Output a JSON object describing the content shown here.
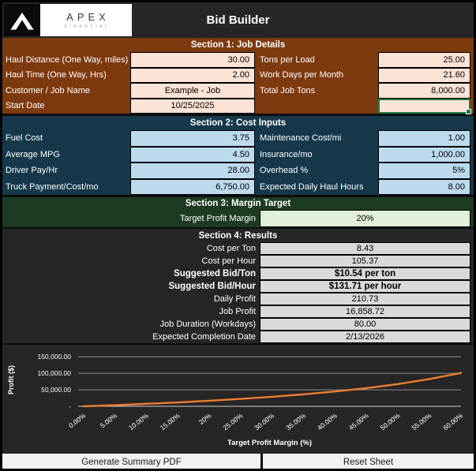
{
  "header": {
    "title": "Bid Builder",
    "logo": {
      "brand": "APEX",
      "sub": "FINANCIAL",
      "chevron_icon": "mountain-chevron"
    }
  },
  "sections": {
    "job_details": {
      "title": "Section 1: Job Details",
      "rows": [
        {
          "label": "Haul Distance (One Way, miles)",
          "value": "30.00",
          "label2": "Tons per Load",
          "value2": "25.00"
        },
        {
          "label": "Haul Time (One Way, Hrs)",
          "value": "2.00",
          "label2": "Work Days per Month",
          "value2": "21.60"
        },
        {
          "label": "Customer / Job Name",
          "value": "Example - Job",
          "label2": "Total Job Tons",
          "value2": "8,000.00"
        },
        {
          "label": "Start Date",
          "value": "10/25/2025",
          "label2": "",
          "value2": ""
        }
      ]
    },
    "cost_inputs": {
      "title": "Section 2: Cost Inputs",
      "rows": [
        {
          "label": "Fuel Cost",
          "value": "3.75",
          "label2": "Maintenance Cost/mi",
          "value2": "1.00"
        },
        {
          "label": "Average MPG",
          "value": "4.50",
          "label2": "Insurance/mo",
          "value2": "1,000.00"
        },
        {
          "label": "Driver Pay/Hr",
          "value": "28.00",
          "label2": "Overhead %",
          "value2": "5%"
        },
        {
          "label": "Truck Payment/Cost/mo",
          "value": "6,750.00",
          "label2": "Expected Daily Haul Hours",
          "value2": "8.00"
        }
      ]
    },
    "margin_target": {
      "title": "Section 3: Margin Target",
      "label": "Target Profit Margin",
      "value": "20%"
    },
    "results": {
      "title": "Section 4: Results",
      "rows": [
        {
          "label": "Cost per Ton",
          "value": "8.43"
        },
        {
          "label": "Cost per Hour",
          "value": "105.37"
        },
        {
          "label": "Suggested Bid/Ton",
          "value": "$10.54 per ton"
        },
        {
          "label": "Suggested Bid/Hour",
          "value": "$131.71 per hour"
        },
        {
          "label": "Daily Profit",
          "value": "210.73"
        },
        {
          "label": "Job Profit",
          "value": "16,858.72"
        },
        {
          "label": "Job Duration (Workdays)",
          "value": "80.00"
        },
        {
          "label": "Expected Completion Date",
          "value": "2/13/2026"
        }
      ]
    }
  },
  "buttons": {
    "generate_pdf": "Generate Summary PDF",
    "reset": "Reset Sheet"
  },
  "colors": {
    "section1_brown": "#7E3A0F",
    "section1_cell": "#FBE3D6",
    "section2_teal": "#16384A",
    "section2_cell": "#BDD9EE",
    "section3_green": "#1D3B22",
    "section3_cell": "#E2EFDA",
    "section4_black": "#262626",
    "section4_cell": "#D9D9D9",
    "selection_green": "#1F7A46",
    "chart_line_orange": "#ED7D31"
  },
  "chart_data": {
    "type": "line",
    "title": "",
    "xlabel": "Target Profit Margin (%)",
    "ylabel": "Profit ($)",
    "x_labels": [
      "0.00%",
      "5.00%",
      "10.00%",
      "15.00%",
      "20%",
      "25.00%",
      "30.00%",
      "35.00%",
      "40.00%",
      "45.00%",
      "50.00%",
      "55.00%",
      "60.00%"
    ],
    "values": [
      0,
      3549,
      7493,
      11900,
      16859,
      22478,
      28901,
      36311,
      44957,
      55174,
      67435,
      82420,
      101152
    ],
    "y_ticks": [
      {
        "label": "150,000.00",
        "value": 150000
      },
      {
        "label": "100,000.00",
        "value": 100000
      },
      {
        "label": "50,000.00",
        "value": 50000
      },
      {
        "label": "-",
        "value": 0
      }
    ],
    "ylim": [
      0,
      160000
    ],
    "grid": true,
    "legend": "none",
    "line_color": "#ED7D31",
    "background": "#262626",
    "label_rotation_deg": -38
  }
}
